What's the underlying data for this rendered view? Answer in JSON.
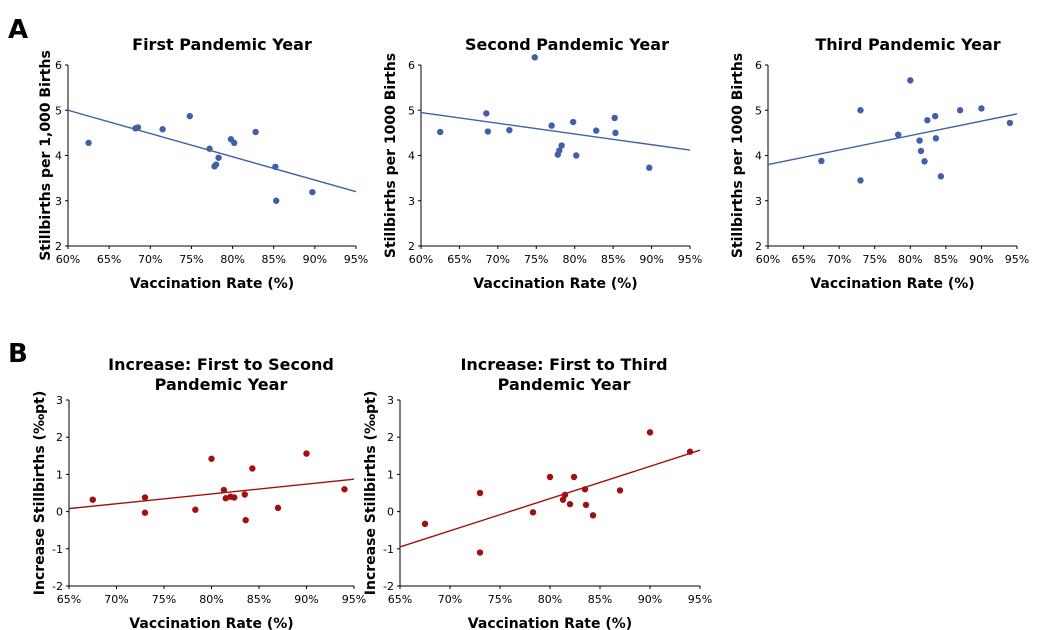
{
  "panel_labels": [
    "A",
    "B"
  ],
  "chart_data": [
    {
      "type": "scatter",
      "title": "First Pandemic Year",
      "xlabel": "Vaccination Rate (%)",
      "ylabel": "Stillbirths per 1,000 Births",
      "xlim": [
        60,
        95
      ],
      "ylim": [
        2,
        6
      ],
      "xticks": [
        60,
        65,
        70,
        75,
        80,
        85,
        90,
        95
      ],
      "xtick_labels": [
        "60%",
        "65%",
        "70%",
        "75%",
        "80%",
        "85%",
        "90%",
        "95%"
      ],
      "yticks": [
        2,
        3,
        4,
        5,
        6
      ],
      "ytick_labels": [
        "2",
        "3",
        "4",
        "5",
        "6"
      ],
      "color": "#4160A8",
      "points": [
        [
          62.5,
          4.28
        ],
        [
          68.2,
          4.6
        ],
        [
          68.5,
          4.62
        ],
        [
          71.5,
          4.58
        ],
        [
          74.8,
          4.87
        ],
        [
          77.2,
          4.15
        ],
        [
          77.8,
          3.76
        ],
        [
          78.0,
          3.8
        ],
        [
          78.3,
          3.95
        ],
        [
          79.8,
          4.36
        ],
        [
          80.2,
          4.28
        ],
        [
          82.8,
          4.52
        ],
        [
          85.2,
          3.75
        ],
        [
          85.3,
          3.0
        ],
        [
          89.7,
          3.19
        ]
      ],
      "trendline": [
        [
          60,
          5.0
        ],
        [
          95,
          3.2
        ]
      ]
    },
    {
      "type": "scatter",
      "title": "Second Pandemic Year",
      "xlabel": "Vaccination Rate (%)",
      "ylabel": "Stillbirths per 1000 Births",
      "xlim": [
        60,
        95
      ],
      "ylim": [
        2,
        6
      ],
      "xticks": [
        60,
        65,
        70,
        75,
        80,
        85,
        90,
        95
      ],
      "xtick_labels": [
        "60%",
        "65%",
        "70%",
        "75%",
        "80%",
        "85%",
        "90%",
        "95%"
      ],
      "yticks": [
        2,
        3,
        4,
        5,
        6
      ],
      "ytick_labels": [
        "2",
        "3",
        "4",
        "5",
        "6"
      ],
      "color": "#4160A8",
      "points": [
        [
          62.5,
          4.52
        ],
        [
          68.5,
          4.93
        ],
        [
          68.7,
          4.53
        ],
        [
          71.5,
          4.56
        ],
        [
          74.8,
          6.17
        ],
        [
          77.0,
          4.66
        ],
        [
          77.8,
          4.02
        ],
        [
          78.0,
          4.11
        ],
        [
          78.3,
          4.22
        ],
        [
          79.8,
          4.74
        ],
        [
          80.2,
          4.0
        ],
        [
          82.8,
          4.55
        ],
        [
          85.2,
          4.83
        ],
        [
          85.3,
          4.5
        ],
        [
          89.7,
          3.73
        ]
      ],
      "trendline": [
        [
          60,
          4.95
        ],
        [
          95,
          4.12
        ]
      ]
    },
    {
      "type": "scatter",
      "title": "Third Pandemic Year",
      "xlabel": "Vaccination Rate (%)",
      "ylabel": "Stillbirths per 1000 Births",
      "xlim": [
        60,
        95
      ],
      "ylim": [
        2,
        6
      ],
      "xticks": [
        60,
        65,
        70,
        75,
        80,
        85,
        90,
        95
      ],
      "xtick_labels": [
        "60%",
        "65%",
        "70%",
        "75%",
        "80%",
        "85%",
        "90%",
        "95%"
      ],
      "yticks": [
        2,
        3,
        4,
        5,
        6
      ],
      "ytick_labels": [
        "2",
        "3",
        "4",
        "5",
        "6"
      ],
      "color": "#4160A8",
      "points": [
        [
          67.5,
          3.88
        ],
        [
          73.0,
          5.0
        ],
        [
          73.0,
          3.45
        ],
        [
          78.3,
          4.46
        ],
        [
          80.0,
          5.66
        ],
        [
          81.3,
          4.33
        ],
        [
          81.5,
          4.1
        ],
        [
          82.0,
          3.87
        ],
        [
          82.4,
          4.78
        ],
        [
          83.5,
          4.87
        ],
        [
          83.6,
          4.38
        ],
        [
          84.3,
          3.54
        ],
        [
          87.0,
          5.0
        ],
        [
          90.0,
          5.04
        ],
        [
          94.0,
          4.72
        ]
      ],
      "trendline": [
        [
          60,
          3.8
        ],
        [
          95,
          4.92
        ]
      ]
    },
    {
      "type": "scatter",
      "title": "Increase: First to Second Pandemic Year",
      "title_lines": [
        "Increase: First to Second",
        "Pandemic Year"
      ],
      "xlabel": "Vaccination Rate (%)",
      "ylabel": "Increase Stillbirths (‰pt)",
      "xlim": [
        65,
        95
      ],
      "ylim": [
        -2,
        3
      ],
      "xticks": [
        65,
        70,
        75,
        80,
        85,
        90,
        95
      ],
      "xtick_labels": [
        "65%",
        "70%",
        "75%",
        "80%",
        "85%",
        "90%",
        "95%"
      ],
      "yticks": [
        -2,
        -1,
        0,
        1,
        2,
        3
      ],
      "ytick_labels": [
        "-2",
        "-1",
        "0",
        "1",
        "2",
        "3"
      ],
      "color": "#A01010",
      "points": [
        [
          67.5,
          0.32
        ],
        [
          73.0,
          0.38
        ],
        [
          73.0,
          -0.03
        ],
        [
          78.3,
          0.05
        ],
        [
          80.0,
          1.42
        ],
        [
          81.3,
          0.58
        ],
        [
          81.5,
          0.36
        ],
        [
          82.0,
          0.4
        ],
        [
          82.4,
          0.38
        ],
        [
          83.5,
          0.46
        ],
        [
          83.6,
          -0.23
        ],
        [
          84.3,
          1.16
        ],
        [
          87.0,
          0.1
        ],
        [
          90.0,
          1.56
        ],
        [
          94.0,
          0.6
        ]
      ],
      "trendline": [
        [
          65,
          0.08
        ],
        [
          95,
          0.87
        ]
      ]
    },
    {
      "type": "scatter",
      "title": "Increase: First to Third Pandemic Year",
      "title_lines": [
        "Increase: First to Third",
        "Pandemic Year"
      ],
      "xlabel": "Vaccination Rate (%)",
      "ylabel": "Increase Stillbirths (‰pt)",
      "xlim": [
        65,
        95
      ],
      "ylim": [
        -2,
        3
      ],
      "xticks": [
        65,
        70,
        75,
        80,
        85,
        90,
        95
      ],
      "xtick_labels": [
        "65%",
        "70%",
        "75%",
        "80%",
        "85%",
        "90%",
        "95%"
      ],
      "yticks": [
        -2,
        -1,
        0,
        1,
        2,
        3
      ],
      "ytick_labels": [
        "-2",
        "-1",
        "0",
        "1",
        "2",
        "3"
      ],
      "color": "#A01010",
      "points": [
        [
          67.5,
          -0.33
        ],
        [
          73.0,
          0.5
        ],
        [
          73.0,
          -1.1
        ],
        [
          78.3,
          -0.02
        ],
        [
          80.0,
          0.93
        ],
        [
          81.3,
          0.32
        ],
        [
          81.5,
          0.45
        ],
        [
          82.0,
          0.2
        ],
        [
          82.4,
          0.93
        ],
        [
          83.5,
          0.6
        ],
        [
          83.6,
          0.18
        ],
        [
          84.3,
          -0.1
        ],
        [
          87.0,
          0.57
        ],
        [
          90.0,
          2.13
        ],
        [
          94.0,
          1.61
        ]
      ],
      "trendline": [
        [
          65,
          -0.95
        ],
        [
          95,
          1.65
        ]
      ]
    }
  ]
}
